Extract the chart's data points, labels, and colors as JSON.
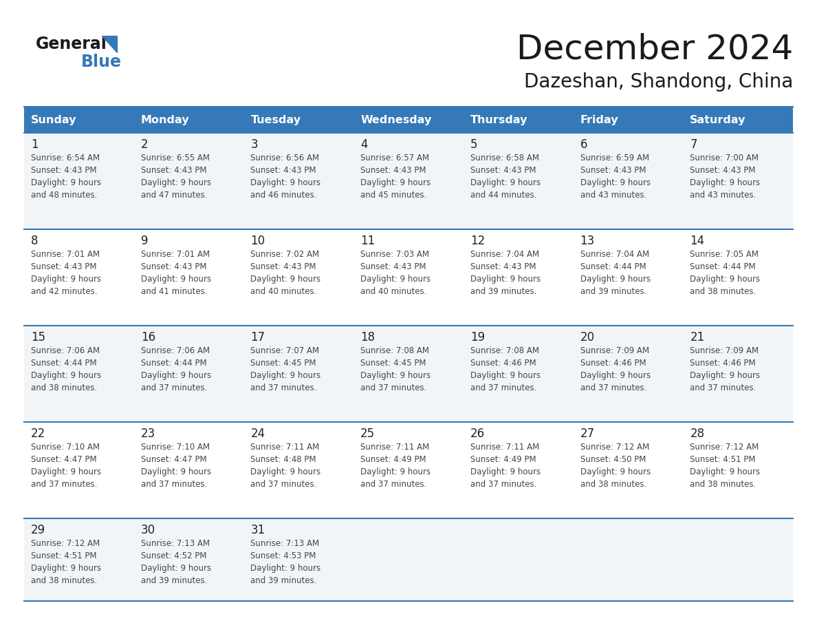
{
  "title": "December 2024",
  "subtitle": "Dazeshan, Shandong, China",
  "header_color": "#3579b8",
  "header_text_color": "#ffffff",
  "days_of_week": [
    "Sunday",
    "Monday",
    "Tuesday",
    "Wednesday",
    "Thursday",
    "Friday",
    "Saturday"
  ],
  "cell_bg_light": "#f2f5f8",
  "cell_bg_white": "#ffffff",
  "separator_color": "#3579b8",
  "text_color": "#444444",
  "day_num_color": "#222222",
  "calendar_data": [
    [
      {
        "day": 1,
        "sunrise": "6:54 AM",
        "sunset": "4:43 PM",
        "daylight_suffix": "48 minutes."
      },
      {
        "day": 2,
        "sunrise": "6:55 AM",
        "sunset": "4:43 PM",
        "daylight_suffix": "47 minutes."
      },
      {
        "day": 3,
        "sunrise": "6:56 AM",
        "sunset": "4:43 PM",
        "daylight_suffix": "46 minutes."
      },
      {
        "day": 4,
        "sunrise": "6:57 AM",
        "sunset": "4:43 PM",
        "daylight_suffix": "45 minutes."
      },
      {
        "day": 5,
        "sunrise": "6:58 AM",
        "sunset": "4:43 PM",
        "daylight_suffix": "44 minutes."
      },
      {
        "day": 6,
        "sunrise": "6:59 AM",
        "sunset": "4:43 PM",
        "daylight_suffix": "43 minutes."
      },
      {
        "day": 7,
        "sunrise": "7:00 AM",
        "sunset": "4:43 PM",
        "daylight_suffix": "43 minutes."
      }
    ],
    [
      {
        "day": 8,
        "sunrise": "7:01 AM",
        "sunset": "4:43 PM",
        "daylight_suffix": "42 minutes."
      },
      {
        "day": 9,
        "sunrise": "7:01 AM",
        "sunset": "4:43 PM",
        "daylight_suffix": "41 minutes."
      },
      {
        "day": 10,
        "sunrise": "7:02 AM",
        "sunset": "4:43 PM",
        "daylight_suffix": "40 minutes."
      },
      {
        "day": 11,
        "sunrise": "7:03 AM",
        "sunset": "4:43 PM",
        "daylight_suffix": "40 minutes."
      },
      {
        "day": 12,
        "sunrise": "7:04 AM",
        "sunset": "4:43 PM",
        "daylight_suffix": "39 minutes."
      },
      {
        "day": 13,
        "sunrise": "7:04 AM",
        "sunset": "4:44 PM",
        "daylight_suffix": "39 minutes."
      },
      {
        "day": 14,
        "sunrise": "7:05 AM",
        "sunset": "4:44 PM",
        "daylight_suffix": "38 minutes."
      }
    ],
    [
      {
        "day": 15,
        "sunrise": "7:06 AM",
        "sunset": "4:44 PM",
        "daylight_suffix": "38 minutes."
      },
      {
        "day": 16,
        "sunrise": "7:06 AM",
        "sunset": "4:44 PM",
        "daylight_suffix": "37 minutes."
      },
      {
        "day": 17,
        "sunrise": "7:07 AM",
        "sunset": "4:45 PM",
        "daylight_suffix": "37 minutes."
      },
      {
        "day": 18,
        "sunrise": "7:08 AM",
        "sunset": "4:45 PM",
        "daylight_suffix": "37 minutes."
      },
      {
        "day": 19,
        "sunrise": "7:08 AM",
        "sunset": "4:46 PM",
        "daylight_suffix": "37 minutes."
      },
      {
        "day": 20,
        "sunrise": "7:09 AM",
        "sunset": "4:46 PM",
        "daylight_suffix": "37 minutes."
      },
      {
        "day": 21,
        "sunrise": "7:09 AM",
        "sunset": "4:46 PM",
        "daylight_suffix": "37 minutes."
      }
    ],
    [
      {
        "day": 22,
        "sunrise": "7:10 AM",
        "sunset": "4:47 PM",
        "daylight_suffix": "37 minutes."
      },
      {
        "day": 23,
        "sunrise": "7:10 AM",
        "sunset": "4:47 PM",
        "daylight_suffix": "37 minutes."
      },
      {
        "day": 24,
        "sunrise": "7:11 AM",
        "sunset": "4:48 PM",
        "daylight_suffix": "37 minutes."
      },
      {
        "day": 25,
        "sunrise": "7:11 AM",
        "sunset": "4:49 PM",
        "daylight_suffix": "37 minutes."
      },
      {
        "day": 26,
        "sunrise": "7:11 AM",
        "sunset": "4:49 PM",
        "daylight_suffix": "37 minutes."
      },
      {
        "day": 27,
        "sunrise": "7:12 AM",
        "sunset": "4:50 PM",
        "daylight_suffix": "38 minutes."
      },
      {
        "day": 28,
        "sunrise": "7:12 AM",
        "sunset": "4:51 PM",
        "daylight_suffix": "38 minutes."
      }
    ],
    [
      {
        "day": 29,
        "sunrise": "7:12 AM",
        "sunset": "4:51 PM",
        "daylight_suffix": "38 minutes."
      },
      {
        "day": 30,
        "sunrise": "7:13 AM",
        "sunset": "4:52 PM",
        "daylight_suffix": "39 minutes."
      },
      {
        "day": 31,
        "sunrise": "7:13 AM",
        "sunset": "4:53 PM",
        "daylight_suffix": "39 minutes."
      },
      null,
      null,
      null,
      null
    ]
  ],
  "logo_general_color": "#1a1a1a",
  "logo_blue_color": "#3579b8",
  "bg_color": "#ffffff"
}
